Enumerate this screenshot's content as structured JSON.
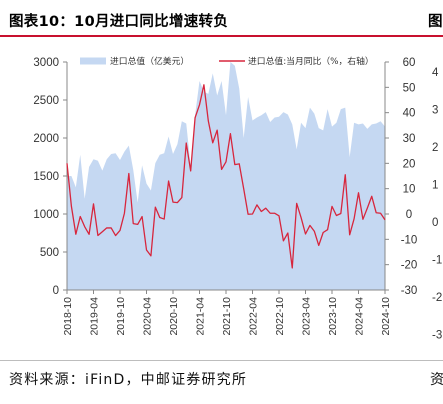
{
  "header": {
    "title": "图表10：10月进口同比增速转负",
    "next_title": "图"
  },
  "footer": {
    "source": "资料来源：iFinD，中邮证券研究所",
    "next_source": "资"
  },
  "colors": {
    "area": "#c5d8f2",
    "line": "#d7263d",
    "accent": "#c8102e"
  },
  "chart_data": {
    "type": "area",
    "title": "图表10：10月进口同比增速转负",
    "x_tick_labels": [
      "2018-10",
      "2019-04",
      "2019-10",
      "2020-04",
      "2020-10",
      "2021-04",
      "2021-10",
      "2022-04",
      "2022-10",
      "2023-04",
      "2023-10",
      "2024-04",
      "2024-10"
    ],
    "y_left": {
      "ticks": [
        0,
        500,
        1000,
        1500,
        2000,
        2500,
        3000
      ],
      "ylim": [
        0,
        3000
      ]
    },
    "y_right": {
      "ticks": [
        -30,
        -20,
        -10,
        0,
        10,
        20,
        30,
        40,
        50,
        60
      ],
      "ylim": [
        -30,
        60
      ]
    },
    "legend_position": "top",
    "x": [
      "2018-10",
      "2018-11",
      "2018-12",
      "2019-01",
      "2019-02",
      "2019-03",
      "2019-04",
      "2019-05",
      "2019-06",
      "2019-07",
      "2019-08",
      "2019-09",
      "2019-10",
      "2019-11",
      "2019-12",
      "2020-01",
      "2020-02",
      "2020-03",
      "2020-04",
      "2020-05",
      "2020-06",
      "2020-07",
      "2020-08",
      "2020-09",
      "2020-10",
      "2020-11",
      "2020-12",
      "2021-01",
      "2021-02",
      "2021-03",
      "2021-04",
      "2021-05",
      "2021-06",
      "2021-07",
      "2021-08",
      "2021-09",
      "2021-10",
      "2021-11",
      "2021-12",
      "2022-01",
      "2022-02",
      "2022-03",
      "2022-04",
      "2022-05",
      "2022-06",
      "2022-07",
      "2022-08",
      "2022-09",
      "2022-10",
      "2022-11",
      "2022-12",
      "2023-01",
      "2023-02",
      "2023-03",
      "2023-04",
      "2023-05",
      "2023-06",
      "2023-07",
      "2023-08",
      "2023-09",
      "2023-10",
      "2023-11",
      "2023-12",
      "2024-01",
      "2024-02",
      "2024-03",
      "2024-04",
      "2024-05",
      "2024-06",
      "2024-07",
      "2024-08",
      "2024-09",
      "2024-10"
    ],
    "series": [
      {
        "name": "进口总值（亿美元）",
        "axis": "left",
        "type": "area",
        "values": [
          1500,
          1500,
          1350,
          1780,
          1200,
          1620,
          1720,
          1700,
          1570,
          1720,
          1790,
          1800,
          1710,
          1820,
          1900,
          1580,
          1150,
          1640,
          1400,
          1310,
          1670,
          1780,
          1800,
          2020,
          1790,
          1920,
          2220,
          2190,
          1630,
          2300,
          2750,
          2610,
          2580,
          2850,
          2560,
          2750,
          2300,
          3000,
          2950,
          2650,
          2000,
          2540,
          2230,
          2270,
          2300,
          2340,
          2210,
          2270,
          2280,
          2340,
          2310,
          2180,
          1850,
          2200,
          2130,
          2400,
          2320,
          2130,
          2100,
          2380,
          2150,
          2200,
          2380,
          2400,
          1750,
          2200,
          2180,
          2190,
          2120,
          2180,
          2190,
          2220,
          2150
        ]
      },
      {
        "name": "进口总值:当月同比（%，右轴）",
        "axis": "right",
        "type": "line",
        "values": [
          20,
          3,
          -8,
          -1,
          -5,
          -8,
          4,
          -8.5,
          -7,
          -5.5,
          -5.5,
          -8.5,
          -6.5,
          0.3,
          16,
          -3.8,
          -4.1,
          -1,
          -14.2,
          -16.5,
          2.7,
          -1.4,
          -2,
          13,
          4.7,
          4.5,
          6.5,
          28,
          17,
          38,
          43.1,
          51,
          36.7,
          28.1,
          33.1,
          17.6,
          20.6,
          31.7,
          19.5,
          19.8,
          10,
          -0.1,
          0,
          3.6,
          1,
          2.3,
          0.3,
          0.3,
          -0.7,
          -10.6,
          -7.5,
          -21.3,
          4.2,
          -1.4,
          -7.9,
          -4.5,
          -6.8,
          -12.4,
          -7.3,
          -6.2,
          3,
          -0.6,
          0.2,
          15.5,
          -8.2,
          -1.9,
          8.4,
          -2.1,
          2.3,
          7,
          0.5,
          0.3,
          -2.3
        ]
      }
    ]
  }
}
